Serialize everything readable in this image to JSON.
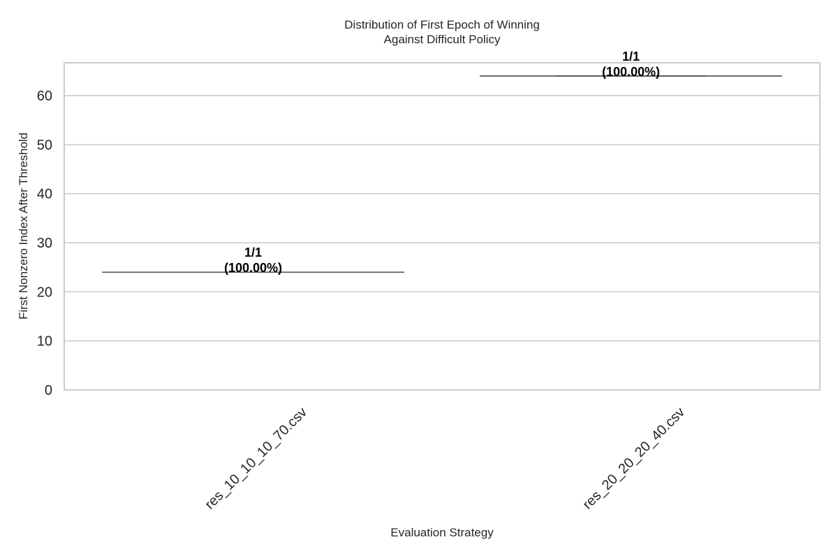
{
  "chart_data": {
    "type": "box",
    "title_lines": [
      "Distribution of First Epoch of Winning",
      "Against Difficult Policy"
    ],
    "xlabel": "Evaluation Strategy",
    "ylabel": "First Nonzero Index After Threshold",
    "categories": [
      "res_10_10_10_70.csv",
      "res_20_20_20_40.csv"
    ],
    "values": [
      24,
      64
    ],
    "annotations": [
      [
        "1/1",
        "(100.00%)"
      ],
      [
        "1/1",
        "(100.00%)"
      ]
    ],
    "ylim": [
      0,
      66.7
    ],
    "yticks": [
      0,
      10,
      20,
      30,
      40,
      50,
      60
    ],
    "grid": true,
    "legend": "none",
    "colors": {
      "grid": "#cccccc",
      "frame": "#cccccc",
      "box_line": "#4d4d4d",
      "text": "#262626",
      "annotation": "#000000"
    }
  }
}
